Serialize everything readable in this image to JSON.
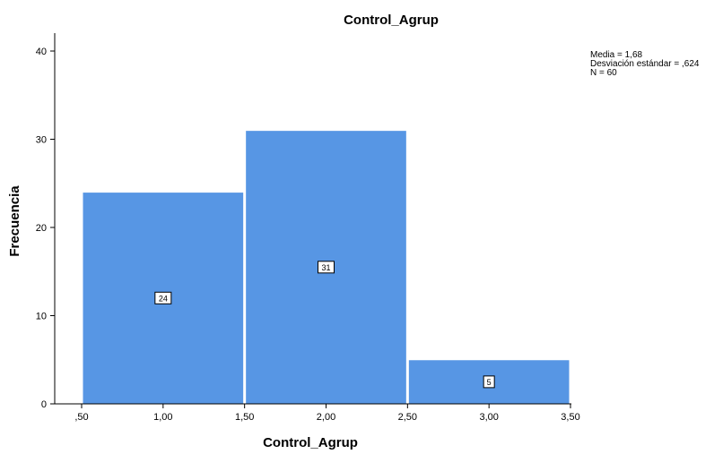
{
  "chart_data": {
    "type": "bar",
    "title": "Control_Agrup",
    "xlabel": "Control_Agrup",
    "ylabel": "Frecuencia",
    "xlim": [
      0.5,
      3.5
    ],
    "ylim": [
      0,
      40
    ],
    "x_ticks": [
      ",50",
      "1,00",
      "1,50",
      "2,00",
      "2,50",
      "3,00",
      "3,50"
    ],
    "x_tick_values": [
      0.5,
      1.0,
      1.5,
      2.0,
      2.5,
      3.0,
      3.5
    ],
    "y_ticks": [
      "0",
      "10",
      "20",
      "30",
      "40"
    ],
    "y_tick_values": [
      0,
      10,
      20,
      30,
      40
    ],
    "bins": [
      {
        "from": 0.5,
        "to": 1.5,
        "value": 24,
        "label": "24"
      },
      {
        "from": 1.5,
        "to": 2.5,
        "value": 31,
        "label": "31"
      },
      {
        "from": 2.5,
        "to": 3.5,
        "value": 5,
        "label": "5"
      }
    ],
    "bar_color": "#5796E4",
    "grid": false,
    "stats_box": {
      "media": "Media = 1,68",
      "desviacion": "Desviación estándar = ,624",
      "n": "N = 60"
    }
  }
}
